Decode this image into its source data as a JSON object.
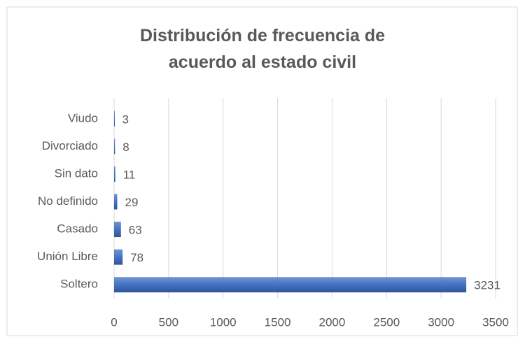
{
  "chart_data": {
    "type": "barh",
    "title": "Distribución de frecuencia de acuerdo al estado civil",
    "categories": [
      "Viudo",
      "Divorciado",
      "Sin dato",
      "No definido",
      "Casado",
      "Unión Libre",
      "Soltero"
    ],
    "values": [
      3,
      8,
      11,
      29,
      63,
      78,
      3231
    ],
    "color": "#4472c4",
    "xlim": [
      0,
      3500
    ],
    "xticks": [
      0,
      500,
      1000,
      1500,
      2000,
      2500,
      3000,
      3500
    ],
    "grid": true
  }
}
